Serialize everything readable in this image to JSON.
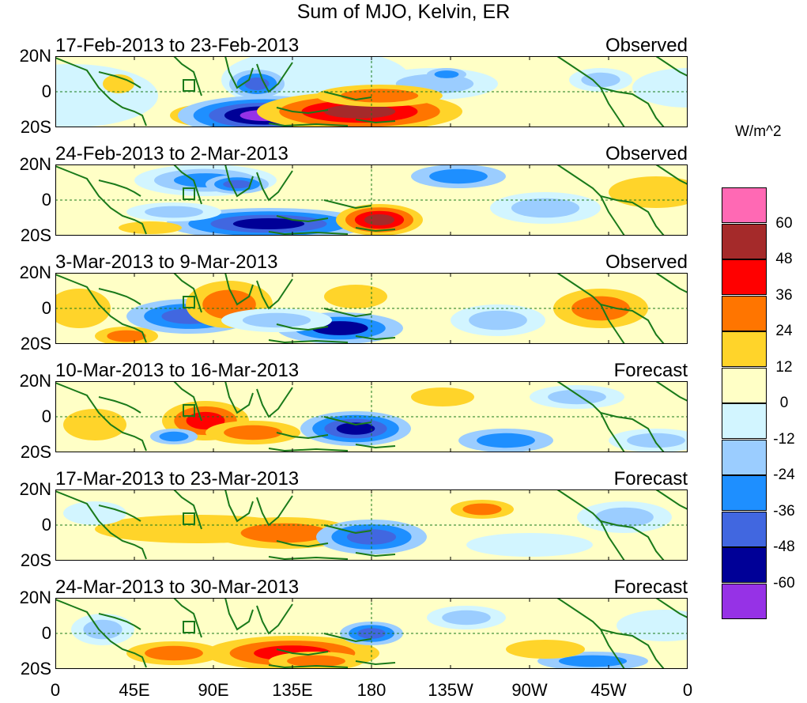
{
  "title": "Sum of MJO, Kelvin, ER",
  "panels": [
    {
      "date": "17-Feb-2013 to 23-Feb-2013",
      "status": "Observed"
    },
    {
      "date": "24-Feb-2013 to 2-Mar-2013",
      "status": "Observed"
    },
    {
      "date": "3-Mar-2013 to 9-Mar-2013",
      "status": "Observed"
    },
    {
      "date": "10-Mar-2013 to 16-Mar-2013",
      "status": "Forecast"
    },
    {
      "date": "17-Mar-2013 to 23-Mar-2013",
      "status": "Forecast"
    },
    {
      "date": "24-Mar-2013 to 30-Mar-2013",
      "status": "Forecast"
    }
  ],
  "lat_labels": [
    "20N",
    "0",
    "20S"
  ],
  "lon_labels": [
    "0",
    "45E",
    "90E",
    "135E",
    "180",
    "135W",
    "90W",
    "45W",
    "0"
  ],
  "colorbar": {
    "units": "W/m^2",
    "ticks": [
      "60",
      "48",
      "36",
      "24",
      "12",
      "0",
      "-12",
      "-24",
      "-36",
      "-48",
      "-60"
    ],
    "colors": [
      "#ff69b4",
      "#a52a2a",
      "#ff0000",
      "#ff7500",
      "#ffd42a",
      "#ffffc6",
      "#d2f5ff",
      "#9bcdff",
      "#1e8fff",
      "#4167e0",
      "#000097",
      "#9632e6"
    ]
  },
  "colors": {
    "coast": "#1a7a1a",
    "grid": "#1a7a1a",
    "background": "#ffffc6"
  }
}
